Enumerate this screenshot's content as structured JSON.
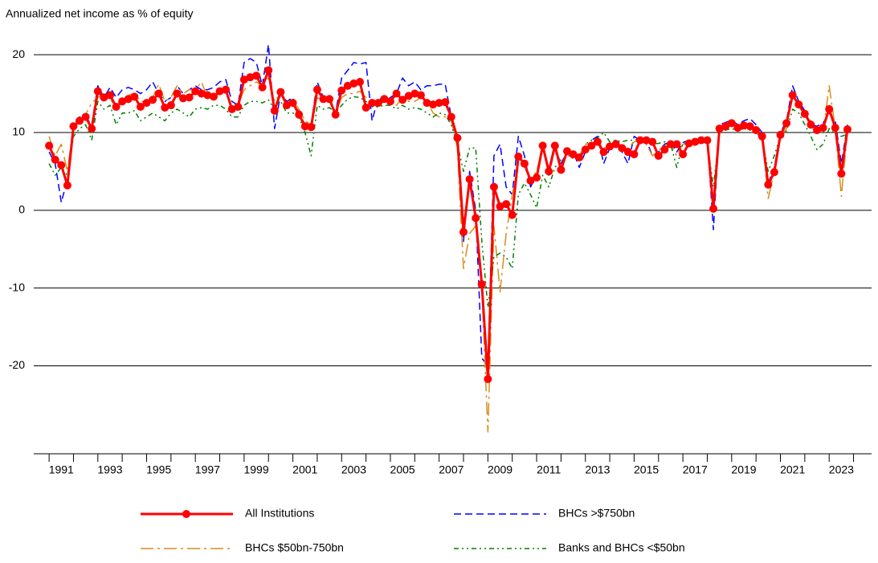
{
  "chart_data": {
    "type": "line",
    "y_label": "Annualized net income as % of equity",
    "x": [
      1991,
      1991.25,
      1991.5,
      1991.75,
      1992,
      1992.25,
      1992.5,
      1992.75,
      1993,
      1993.25,
      1993.5,
      1993.75,
      1994,
      1994.25,
      1994.5,
      1994.75,
      1995,
      1995.25,
      1995.5,
      1995.75,
      1996,
      1996.25,
      1996.5,
      1996.75,
      1997,
      1997.25,
      1997.5,
      1997.75,
      1998,
      1998.25,
      1998.5,
      1998.75,
      1999,
      1999.25,
      1999.5,
      1999.75,
      2000,
      2000.25,
      2000.5,
      2000.75,
      2001,
      2001.25,
      2001.5,
      2001.75,
      2002,
      2002.25,
      2002.5,
      2002.75,
      2003,
      2003.25,
      2003.5,
      2003.75,
      2004,
      2004.25,
      2004.5,
      2004.75,
      2005,
      2005.25,
      2005.5,
      2005.75,
      2006,
      2006.25,
      2006.5,
      2006.75,
      2007,
      2007.25,
      2007.5,
      2007.75,
      2008,
      2008.25,
      2008.5,
      2008.75,
      2009,
      2009.25,
      2009.5,
      2009.75,
      2010,
      2010.25,
      2010.5,
      2010.75,
      2011,
      2011.25,
      2011.5,
      2011.75,
      2012,
      2012.25,
      2012.5,
      2012.75,
      2013,
      2013.25,
      2013.5,
      2013.75,
      2014,
      2014.25,
      2014.5,
      2014.75,
      2015,
      2015.25,
      2015.5,
      2015.75,
      2016,
      2016.25,
      2016.5,
      2016.75,
      2017,
      2017.25,
      2017.5,
      2017.75,
      2018,
      2018.25,
      2018.5,
      2018.75,
      2019,
      2019.25,
      2019.5,
      2019.75,
      2020,
      2020.25,
      2020.5,
      2020.75,
      2021,
      2021.25,
      2021.5,
      2021.75,
      2022,
      2022.25,
      2022.5,
      2022.75,
      2023,
      2023.25,
      2023.5,
      2023.75
    ],
    "series": [
      {
        "name": "All Institutions",
        "color": "#ff0000",
        "style": "solid",
        "marker": true,
        "values": [
          8.3,
          6.5,
          5.8,
          3.2,
          10.8,
          11.5,
          12,
          10.5,
          15.3,
          14.5,
          14.8,
          13.3,
          14,
          14.3,
          14.6,
          13.3,
          13.8,
          14.2,
          15,
          13.2,
          13.5,
          15,
          14.4,
          14.5,
          15.3,
          15,
          14.8,
          14.6,
          15.3,
          15.5,
          13,
          13.3,
          16.8,
          17.1,
          17.3,
          15.8,
          18,
          12.8,
          15.2,
          13.5,
          13.8,
          12.3,
          10.8,
          10.7,
          15.5,
          14.3,
          14.3,
          12.3,
          15.4,
          16,
          16.3,
          16.5,
          13.2,
          13.8,
          13.8,
          14.3,
          14,
          15,
          14.2,
          14.7,
          15,
          14.8,
          13.8,
          13.6,
          13.8,
          13.9,
          12,
          9.3,
          -2.8,
          4,
          -1,
          -9.5,
          -21.7,
          3,
          0.5,
          0.8,
          -0.6,
          6.9,
          6,
          3.8,
          4.2,
          8.3,
          5,
          8.3,
          5.2,
          7.6,
          7.2,
          6.8,
          7.8,
          8.3,
          8.8,
          7.5,
          8.2,
          8.5,
          8,
          7.5,
          7.2,
          9,
          9,
          8.8,
          7,
          7.8,
          8.5,
          8.5,
          7.2,
          8.6,
          8.8,
          9,
          9,
          0.2,
          10.5,
          10.8,
          11.2,
          10.6,
          10.9,
          10.8,
          10.3,
          9.5,
          3.3,
          4.9,
          9.7,
          11.2,
          14.8,
          13.6,
          12.4,
          11,
          10.3,
          10.6,
          13,
          10.6,
          4.7,
          10.4
        ]
      },
      {
        "name": "BHCs >$750bn",
        "color": "#0000ff",
        "style": "dashed",
        "marker": false,
        "values": [
          7.5,
          6,
          1,
          4,
          11,
          12,
          12,
          11,
          16,
          14.5,
          15.8,
          14.5,
          15.5,
          15.8,
          15.5,
          15,
          15.5,
          16.5,
          15,
          14,
          14.5,
          16,
          15,
          15.5,
          16,
          15.5,
          15.5,
          15.8,
          16.5,
          16.8,
          14,
          13.5,
          19,
          19.5,
          19,
          16,
          21.3,
          10.5,
          15,
          14,
          14.5,
          12.5,
          11,
          11,
          16.5,
          14.5,
          14.5,
          12.5,
          17,
          18,
          19,
          18.8,
          19,
          11.5,
          14.5,
          14,
          14.5,
          15,
          17,
          16,
          16.5,
          15.5,
          16,
          16,
          16.2,
          16.2,
          12,
          9,
          -4,
          5,
          0,
          -19,
          -20,
          7,
          8.5,
          3,
          2,
          9.5,
          7,
          3,
          4.5,
          8.5,
          4.5,
          8,
          6,
          7.5,
          7.5,
          5.5,
          7.5,
          9,
          9.5,
          6,
          8,
          9,
          7.5,
          6,
          9.5,
          9,
          9,
          7,
          7.5,
          8.5,
          8.8,
          7.5,
          8.7,
          9,
          9,
          9.2,
          9.3,
          -2.5,
          11,
          11.3,
          11.6,
          11,
          11.5,
          11.8,
          11,
          10,
          3.5,
          5.5,
          10,
          11.5,
          16,
          14,
          12.8,
          11,
          10.8,
          11.2,
          12.5,
          11.5,
          6,
          11
        ]
      },
      {
        "name": "BHCs $50bn-750bn",
        "color": "#d98c1a",
        "style": "dash-dot",
        "marker": false,
        "values": [
          9.5,
          7,
          8.5,
          5,
          11,
          11.5,
          12.3,
          13.8,
          14.5,
          15,
          14.2,
          13.5,
          14,
          14.8,
          15,
          14,
          14,
          14.5,
          16.2,
          14,
          14.5,
          16,
          15,
          15.5,
          15.5,
          16.5,
          14.5,
          14.5,
          15,
          15.5,
          13,
          13.5,
          15.5,
          16,
          16.5,
          16,
          17,
          14,
          15,
          14,
          14,
          13,
          11.5,
          11,
          14.5,
          14,
          14,
          12.5,
          14.5,
          15,
          15,
          15.3,
          14.5,
          14,
          13.5,
          14,
          14,
          13.5,
          14.5,
          14,
          14,
          14.5,
          14,
          12.5,
          12,
          12,
          11.5,
          8,
          -7.5,
          -3,
          -2,
          -10,
          -28.5,
          -2,
          -10.5,
          -3,
          2,
          6,
          5.5,
          4,
          5,
          8,
          5.5,
          7.8,
          5,
          7.5,
          6.5,
          7,
          8.5,
          8.3,
          8.8,
          8,
          8.3,
          8.5,
          8,
          8,
          8.8,
          9,
          8.5,
          7,
          7.7,
          8.3,
          8.5,
          7,
          8.5,
          8.6,
          8.8,
          9,
          9,
          1,
          10,
          10.5,
          11,
          10.5,
          10.8,
          10.7,
          10.5,
          9.5,
          1.5,
          5,
          9.5,
          10.5,
          15,
          13.5,
          12,
          11.5,
          10,
          10,
          16,
          10.5,
          1.8,
          10.2
        ]
      },
      {
        "name": "Banks and BHCs <$50bn",
        "color": "#008000",
        "style": "dash-dot-dot",
        "marker": false,
        "values": [
          6,
          4.5,
          5.5,
          4.5,
          9.5,
          10.5,
          11,
          9,
          14,
          13,
          13.5,
          11,
          12.5,
          12.5,
          12.8,
          11.5,
          12,
          12.5,
          12,
          11.5,
          12.5,
          13,
          12.5,
          12,
          13,
          13.2,
          13,
          13.5,
          13.5,
          13,
          12,
          12,
          13.5,
          14,
          14,
          13.8,
          14.2,
          13,
          14,
          12.5,
          12.5,
          12,
          10,
          7,
          13.5,
          13,
          13.2,
          12.5,
          13.5,
          14.3,
          14.6,
          14.5,
          14,
          13.3,
          13.3,
          13.5,
          13.5,
          13,
          13.5,
          13,
          13.2,
          13,
          12.5,
          12,
          12.5,
          12.3,
          11,
          8.5,
          5,
          8,
          8,
          -4,
          -12.5,
          -6,
          -5.5,
          -6,
          -7.5,
          2,
          3.5,
          2,
          0.3,
          4.5,
          3,
          5.5,
          6.5,
          7,
          7,
          6.5,
          8.5,
          9,
          9.3,
          10,
          8.8,
          9,
          8.8,
          9,
          9,
          9.3,
          9,
          8.5,
          8.6,
          8.8,
          8.5,
          5.5,
          8.6,
          8.5,
          8.5,
          8.7,
          8.7,
          3,
          10,
          10.3,
          10.5,
          10.2,
          10.5,
          10.3,
          10,
          9.2,
          5,
          7,
          9.5,
          10.2,
          13,
          12.5,
          11,
          9.5,
          7.8,
          8.5,
          10.5,
          9.8,
          9.5,
          9.8
        ]
      }
    ],
    "xlim": [
      1990.37,
      2024.74
    ],
    "xticks": [
      {
        "value": 1991.5,
        "label": "1991"
      },
      {
        "value": 1993.5,
        "label": "1993"
      },
      {
        "value": 1995.5,
        "label": "1995"
      },
      {
        "value": 1997.5,
        "label": "1997"
      },
      {
        "value": 1999.5,
        "label": "1999"
      },
      {
        "value": 2001.5,
        "label": "2001"
      },
      {
        "value": 2003.5,
        "label": "2003"
      },
      {
        "value": 2005.5,
        "label": "2005"
      },
      {
        "value": 2007.5,
        "label": "2007"
      },
      {
        "value": 2009.5,
        "label": "2009"
      },
      {
        "value": 2011.5,
        "label": "2011"
      },
      {
        "value": 2013.5,
        "label": "2013"
      },
      {
        "value": 2015.5,
        "label": "2015"
      },
      {
        "value": 2017.5,
        "label": "2017"
      },
      {
        "value": 2019.5,
        "label": "2019"
      },
      {
        "value": 2021.5,
        "label": "2021"
      },
      {
        "value": 2023.5,
        "label": "2023"
      }
    ],
    "x_tick_marks": [
      1991,
      1992,
      1993,
      1994,
      1995,
      1996,
      1997,
      1998,
      1999,
      2000,
      2001,
      2002,
      2003,
      2004,
      2005,
      2006,
      2007,
      2008,
      2009,
      2010,
      2011,
      2012,
      2013,
      2014,
      2015,
      2016,
      2017,
      2018,
      2019,
      2020,
      2021,
      2022,
      2023,
      2024
    ],
    "ylim": [
      -31.3,
      22.9
    ],
    "yticks": [
      -20,
      -10,
      0,
      10,
      20
    ],
    "grid": true,
    "legend": "bottom"
  }
}
